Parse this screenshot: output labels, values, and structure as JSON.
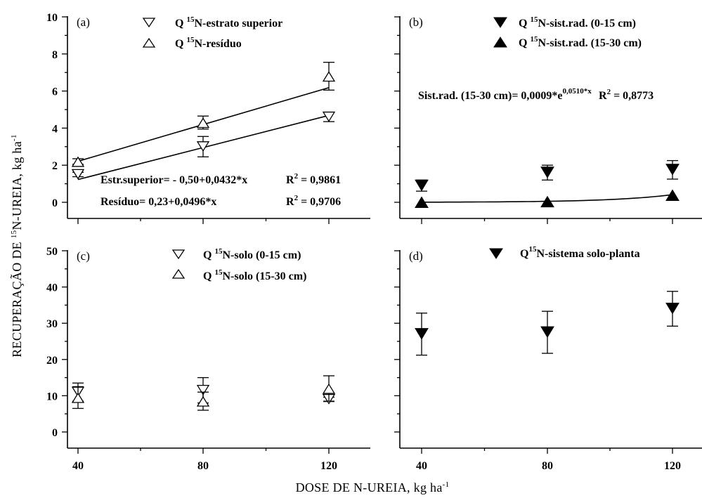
{
  "figure": {
    "y_axis_title": "RECUPERAÇÃO DE ",
    "y_axis_title_sup": "15",
    "y_axis_title_rest": "N-UREIA, kg ha",
    "y_axis_title_unit_sup": "-1",
    "x_axis_title": "DOSE DE N-UREIA, kg ha",
    "x_axis_title_sup": "-1"
  },
  "chart_data": [
    {
      "id": "a",
      "type": "scatter",
      "panel_letter": "(a)",
      "x": [
        40,
        80,
        120
      ],
      "xlim": [
        40,
        120
      ],
      "ylim": [
        0,
        10
      ],
      "x_ticks": [
        "40",
        "80",
        "120"
      ],
      "y_ticks": [
        "0",
        "2",
        "4",
        "6",
        "8",
        "10"
      ],
      "series": [
        {
          "name_pre": "Q ",
          "name_sup": "15",
          "name_post": "N-estrato superior",
          "marker": "triangle-down-open",
          "values": [
            1.5,
            3.0,
            4.6
          ],
          "err": [
            0.12,
            0.55,
            0.25
          ]
        },
        {
          "name_pre": "Q ",
          "name_sup": "15",
          "name_post": "N-resíduo",
          "marker": "triangle-up-open",
          "values": [
            2.2,
            4.3,
            6.8
          ],
          "err": [
            0.15,
            0.35,
            0.75
          ]
        }
      ],
      "fits": [
        {
          "intercept": -0.5,
          "slope": 0.0432,
          "label": "Estr.superior= - 0,50+0,0432*x",
          "r2_label": "R",
          "r2_sup": "2",
          "r2_value": " = 0,9861"
        },
        {
          "intercept": 0.23,
          "slope": 0.0496,
          "label": "Resíduo= 0,23+0,0496*x",
          "r2_label": "R",
          "r2_sup": "2",
          "r2_value": " = 0,9706"
        }
      ]
    },
    {
      "id": "b",
      "type": "scatter",
      "panel_letter": "(b)",
      "x": [
        40,
        80,
        120
      ],
      "xlim": [
        40,
        120
      ],
      "ylim": [
        0,
        10
      ],
      "x_ticks": [
        "40",
        "80",
        "120"
      ],
      "y_ticks": [
        "0",
        "2",
        "4",
        "6",
        "8",
        "10"
      ],
      "series": [
        {
          "name_pre": "Q ",
          "name_sup": "15",
          "name_post": "N-sist.rad. (0-15 cm)",
          "marker": "triangle-down-filled",
          "values": [
            0.9,
            1.6,
            1.75
          ],
          "err": [
            0.3,
            0.4,
            0.5
          ]
        },
        {
          "name_pre": "Q ",
          "name_sup": "15",
          "name_post": "N-sist.rad. (15-30 cm)",
          "marker": "triangle-up-filled",
          "values": [
            0.02,
            0.05,
            0.4
          ],
          "err": [
            0,
            0,
            0
          ]
        }
      ],
      "fits": [
        {
          "a": 0.0009,
          "b": 0.051,
          "label": "Sist.rad. (15-30 cm)= 0,0009*e",
          "label_sup": "0,0510*x",
          "r2_label": "R",
          "r2_sup": "2",
          "r2_value": " = 0,8773"
        }
      ]
    },
    {
      "id": "c",
      "type": "scatter",
      "panel_letter": "(c)",
      "x": [
        40,
        80,
        120
      ],
      "xlim": [
        40,
        120
      ],
      "ylim": [
        0,
        50
      ],
      "x_ticks": [
        "40",
        "80",
        "120"
      ],
      "y_ticks": [
        "0",
        "10",
        "20",
        "30",
        "40",
        "50"
      ],
      "series": [
        {
          "name_pre": "Q ",
          "name_sup": "15",
          "name_post": "N-solo (0-15 cm)",
          "marker": "triangle-down-open",
          "values": [
            11.0,
            11.5,
            9.0
          ],
          "err": [
            2.5,
            3.5,
            0.6
          ]
        },
        {
          "name_pre": "Q ",
          "name_sup": "15",
          "name_post": "N-solo (15-30 cm)",
          "marker": "triangle-up-open",
          "values": [
            9.5,
            8.5,
            12.0
          ],
          "err": [
            3.0,
            2.5,
            3.5
          ]
        }
      ]
    },
    {
      "id": "d",
      "type": "scatter",
      "panel_letter": "(d)",
      "x": [
        40,
        80,
        120
      ],
      "xlim": [
        40,
        120
      ],
      "ylim": [
        0,
        50
      ],
      "x_ticks": [
        "40",
        "80",
        "120"
      ],
      "y_ticks": [
        "0",
        "10",
        "20",
        "30",
        "40",
        "50"
      ],
      "series": [
        {
          "name_pre": "Q",
          "name_sup": "15",
          "name_post": "N-sistema solo-planta",
          "marker": "triangle-down-filled",
          "values": [
            27.0,
            27.5,
            34.0
          ],
          "err": [
            5.8,
            5.8,
            4.8
          ]
        }
      ]
    }
  ]
}
